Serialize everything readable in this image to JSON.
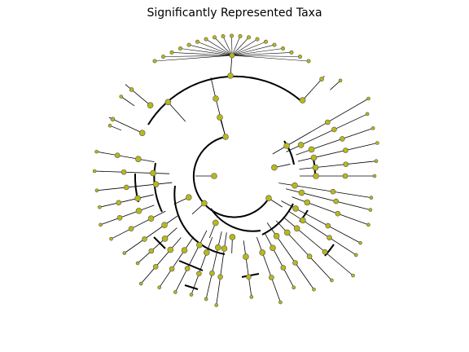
{
  "title": "Significantly Represented Taxa"
}
